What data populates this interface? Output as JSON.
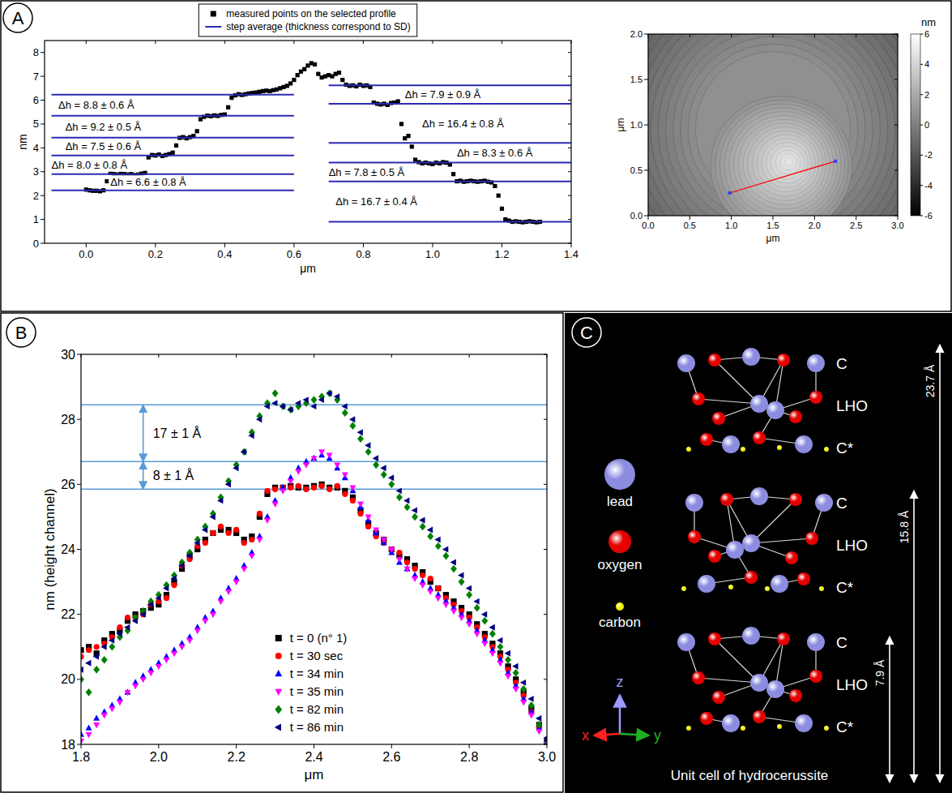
{
  "panel_labels": [
    "A",
    "B",
    "C"
  ],
  "chart_data": [
    {
      "type": "scatter",
      "x_label": "μm",
      "y_label": "nm",
      "xlim": [
        -0.12,
        1.4
      ],
      "xticks": [
        {
          "value": 0,
          "label": "0.0"
        },
        0.2,
        0.4,
        0.6,
        0.8,
        {
          "value": 1,
          "label": "1.0"
        },
        1.2,
        1.4
      ],
      "ylim": [
        0,
        8.5
      ],
      "yticks": [
        0,
        1,
        2,
        3,
        4,
        5,
        6,
        7,
        8
      ],
      "legend": "top",
      "series": [
        {
          "name": "measured points on the selected profile",
          "color": "#000000",
          "marker": "square",
          "x": [
            0,
            0.01,
            0.02,
            0.03,
            0.04,
            0.05,
            0.06,
            0.07,
            0.08,
            0.09,
            0.1,
            0.11,
            0.12,
            0.13,
            0.14,
            0.15,
            0.16,
            0.17,
            0.18,
            0.19,
            0.2,
            0.21,
            0.22,
            0.23,
            0.24,
            0.25,
            0.26,
            0.27,
            0.28,
            0.29,
            0.3,
            0.31,
            0.32,
            0.33,
            0.34,
            0.35,
            0.36,
            0.37,
            0.38,
            0.39,
            0.4,
            0.41,
            0.42,
            0.43,
            0.44,
            0.45,
            0.46,
            0.47,
            0.48,
            0.49,
            0.5,
            0.51,
            0.52,
            0.53,
            0.54,
            0.55,
            0.56,
            0.57,
            0.58,
            0.59,
            0.6,
            0.61,
            0.62,
            0.63,
            0.64,
            0.65,
            0.66,
            0.67,
            0.68,
            0.69,
            0.7,
            0.71,
            0.72,
            0.73,
            0.74,
            0.75,
            0.76,
            0.77,
            0.78,
            0.79,
            0.8,
            0.81,
            0.82,
            0.83,
            0.84,
            0.85,
            0.86,
            0.87,
            0.88,
            0.89,
            0.9,
            0.91,
            0.92,
            0.93,
            0.94,
            0.95,
            0.96,
            0.97,
            0.98,
            0.99,
            1,
            1.01,
            1.02,
            1.03,
            1.04,
            1.05,
            1.06,
            1.07,
            1.08,
            1.09,
            1.1,
            1.11,
            1.12,
            1.13,
            1.14,
            1.15,
            1.16,
            1.17,
            1.18,
            1.19,
            1.2,
            1.21,
            1.22,
            1.23,
            1.24,
            1.25,
            1.26,
            1.27,
            1.28,
            1.29,
            1.3,
            1.31
          ],
          "values": [
            2.25,
            2.22,
            2.2,
            2.2,
            2.18,
            2.22,
            2.6,
            2.95,
            2.9,
            2.88,
            2.92,
            2.9,
            2.88,
            2.9,
            2.86,
            2.88,
            2.92,
            2.95,
            3.6,
            3.7,
            3.68,
            3.72,
            3.66,
            3.7,
            3.74,
            3.8,
            4.1,
            4.42,
            4.45,
            4.4,
            4.45,
            4.5,
            4.7,
            5.2,
            5.3,
            5.35,
            5.33,
            5.36,
            5.34,
            5.38,
            5.4,
            5.7,
            6.1,
            6.2,
            6.25,
            6.22,
            6.25,
            6.28,
            6.3,
            6.32,
            6.35,
            6.38,
            6.4,
            6.38,
            6.42,
            6.45,
            6.5,
            6.55,
            6.6,
            6.7,
            6.85,
            7.05,
            7.2,
            7.3,
            7.45,
            7.55,
            7.5,
            7.1,
            6.95,
            7.0,
            7.05,
            7.0,
            7.1,
            7.15,
            6.85,
            6.65,
            6.6,
            6.62,
            6.58,
            6.65,
            6.6,
            6.62,
            6.55,
            5.9,
            5.85,
            5.82,
            5.85,
            5.8,
            5.88,
            5.9,
            5.95,
            5.0,
            4.4,
            4.5,
            4.05,
            3.5,
            3.4,
            3.35,
            3.38,
            3.35,
            3.32,
            3.38,
            3.35,
            3.4,
            3.38,
            3.3,
            2.9,
            2.6,
            2.62,
            2.58,
            2.6,
            2.62,
            2.6,
            2.58,
            2.6,
            2.62,
            2.58,
            2.55,
            2.4,
            2.0,
            1.45,
            1.0,
            0.95,
            0.9,
            0.92,
            0.9,
            0.88,
            0.9,
            0.92,
            0.9,
            0.88,
            0.9
          ]
        },
        {
          "name": "step average (thickness correspond to SD)",
          "type": "hline",
          "color": "#2b2bb5",
          "values": [
            2.22,
            2.9,
            3.68,
            4.43,
            5.35,
            6.23,
            6.62,
            5.85,
            4.21,
            3.38,
            2.59,
            0.9
          ],
          "x_start": [
            -0.1,
            -0.1,
            -0.1,
            -0.1,
            -0.1,
            -0.1,
            0.7,
            0.7,
            0.7,
            0.7,
            0.7,
            0.7
          ],
          "x_end": [
            0.6,
            0.6,
            0.6,
            0.6,
            0.6,
            0.6,
            1.4,
            1.4,
            1.4,
            1.4,
            1.4,
            1.4
          ]
        }
      ],
      "annotations": [
        {
          "text": "Δh = 8.8 ± 0.6 Å",
          "x": -0.08,
          "y": 5.79
        },
        {
          "text": "Δh = 9.2 ± 0.5 Å",
          "x": -0.06,
          "y": 4.89
        },
        {
          "text": "Δh = 7.5 ± 0.6 Å",
          "x": -0.06,
          "y": 4.05
        },
        {
          "text": "Δh = 8.0 ± 0.8 Å",
          "x": -0.1,
          "y": 3.29
        },
        {
          "text": "Δh = 6.6 ± 0.8 Å",
          "x": 0.07,
          "y": 2.56
        },
        {
          "text": "Δh = 7.9 ± 0.9 Å",
          "x": 0.92,
          "y": 6.23
        },
        {
          "text": "Δh = 16.4 ± 0.8 Å",
          "x": 0.97,
          "y": 5.03
        },
        {
          "text": "Δh = 8.3 ± 0.6 Å",
          "x": 1.07,
          "y": 3.79
        },
        {
          "text": "Δh = 7.8 ± 0.5 Å",
          "x": 0.7,
          "y": 2.98
        },
        {
          "text": "Δh = 16.7 ± 0.4 Å",
          "x": 0.72,
          "y": 1.74
        }
      ]
    },
    {
      "type": "image",
      "x_label": "μm",
      "y_label": "μm",
      "xlim": [
        0,
        3
      ],
      "xticks": [
        {
          "value": 0,
          "label": "0.0"
        },
        0.5,
        {
          "value": 1,
          "label": "1.0"
        },
        1.5,
        {
          "value": 2,
          "label": "2.0"
        },
        2.5,
        {
          "value": 3,
          "label": "3.0"
        }
      ],
      "ylim": [
        0,
        2
      ],
      "yticks": [
        {
          "value": 0,
          "label": "0.0"
        },
        0.5,
        {
          "value": 1,
          "label": "1.0"
        },
        1.5,
        {
          "value": 2,
          "label": "2.0"
        }
      ],
      "colorbar": {
        "label": "nm",
        "range": [
          -6,
          6
        ],
        "ticks": [
          -6,
          -4,
          -2,
          0,
          2,
          4,
          6
        ]
      },
      "profile": {
        "x": [
          0.98,
          2.25
        ],
        "y": [
          0.25,
          0.6
        ],
        "color": "#ff0000"
      }
    },
    {
      "type": "scatter",
      "x_label": "μm",
      "y_label": "nm (height channel)",
      "xlim": [
        1.8,
        3.0
      ],
      "xticks": [
        1.8,
        {
          "value": 2,
          "label": "2.0"
        },
        2.2,
        2.4,
        2.6,
        2.8,
        {
          "value": 3,
          "label": "3.0"
        }
      ],
      "ylim": [
        18,
        30
      ],
      "yticks": [
        18,
        20,
        22,
        24,
        26,
        28,
        30
      ],
      "legend": "bottom",
      "x": [
        1.8,
        1.82,
        1.84,
        1.86,
        1.88,
        1.9,
        1.92,
        1.94,
        1.96,
        1.98,
        2.0,
        2.02,
        2.04,
        2.06,
        2.08,
        2.1,
        2.12,
        2.14,
        2.16,
        2.18,
        2.2,
        2.22,
        2.24,
        2.26,
        2.28,
        2.3,
        2.32,
        2.34,
        2.36,
        2.38,
        2.4,
        2.42,
        2.44,
        2.46,
        2.48,
        2.5,
        2.52,
        2.54,
        2.56,
        2.58,
        2.6,
        2.62,
        2.64,
        2.66,
        2.68,
        2.7,
        2.72,
        2.74,
        2.76,
        2.78,
        2.8,
        2.82,
        2.84,
        2.86,
        2.88,
        2.9,
        2.92,
        2.94,
        2.96,
        2.98,
        3.0
      ],
      "series": [
        {
          "name": "t = 0 (n° 1)",
          "color": "#000000",
          "marker": "square",
          "values": [
            20.9,
            21.0,
            20.8,
            21.2,
            21.4,
            21.5,
            21.8,
            22.0,
            22.1,
            22.2,
            22.3,
            22.6,
            23.0,
            23.4,
            23.8,
            24.0,
            24.3,
            24.5,
            24.6,
            24.6,
            24.5,
            24.3,
            24.4,
            25.0,
            25.7,
            25.9,
            25.9,
            25.95,
            25.9,
            25.9,
            25.95,
            26.0,
            25.9,
            25.9,
            25.8,
            25.6,
            25.2,
            24.8,
            24.5,
            24.3,
            24.0,
            23.8,
            23.7,
            23.5,
            23.3,
            23.0,
            22.8,
            22.6,
            22.4,
            22.2,
            22.0,
            21.7,
            21.4,
            21.1,
            20.8,
            20.4,
            20.0,
            19.6,
            19.1,
            18.6,
            18.1
          ]
        },
        {
          "name": "t = 30 sec",
          "color": "#ff0000",
          "marker": "circle",
          "values": [
            20.7,
            20.9,
            21.0,
            21.1,
            21.3,
            21.6,
            21.9,
            21.9,
            22.0,
            22.3,
            22.4,
            22.5,
            22.9,
            23.5,
            23.7,
            24.1,
            24.2,
            24.5,
            24.7,
            24.5,
            24.6,
            24.2,
            24.3,
            25.1,
            25.8,
            25.85,
            25.9,
            25.9,
            25.95,
            25.85,
            25.9,
            25.95,
            25.85,
            25.95,
            25.7,
            25.5,
            25.1,
            24.7,
            24.4,
            24.2,
            24.0,
            23.9,
            23.6,
            23.4,
            23.2,
            23.1,
            22.8,
            22.5,
            22.3,
            22.1,
            21.9,
            21.6,
            21.3,
            21.0,
            20.7,
            20.3,
            19.9,
            19.5,
            19.0,
            18.5,
            18.0
          ]
        },
        {
          "name": "t = 34 min",
          "color": "#0000ff",
          "marker": "triangle-up",
          "values": [
            18.3,
            18.5,
            18.8,
            19.0,
            19.2,
            19.4,
            19.6,
            19.9,
            20.1,
            20.3,
            20.5,
            20.7,
            20.9,
            21.1,
            21.3,
            21.6,
            21.9,
            22.1,
            22.5,
            22.8,
            23.1,
            23.5,
            23.9,
            24.4,
            25.0,
            25.5,
            25.9,
            26.2,
            26.5,
            26.7,
            26.8,
            26.9,
            26.8,
            26.5,
            26.2,
            25.8,
            25.3,
            24.9,
            24.5,
            24.2,
            23.9,
            23.6,
            23.4,
            23.2,
            23.0,
            22.8,
            22.6,
            22.4,
            22.2,
            22.0,
            21.8,
            21.5,
            21.2,
            20.9,
            20.6,
            20.2,
            19.8,
            19.4,
            19.0,
            18.5,
            18.1
          ]
        },
        {
          "name": "t = 35 min",
          "color": "#ff00ff",
          "marker": "triangle-down",
          "values": [
            18.1,
            18.3,
            18.6,
            18.9,
            19.1,
            19.3,
            19.6,
            19.8,
            20.0,
            20.2,
            20.4,
            20.6,
            20.8,
            21.0,
            21.2,
            21.5,
            21.8,
            22.0,
            22.4,
            22.7,
            23.0,
            23.4,
            23.8,
            24.3,
            24.9,
            25.4,
            25.8,
            26.1,
            26.4,
            26.6,
            26.8,
            27.0,
            26.9,
            26.6,
            26.3,
            25.9,
            25.4,
            25.0,
            24.6,
            24.3,
            24.0,
            23.7,
            23.4,
            23.1,
            22.9,
            22.7,
            22.5,
            22.3,
            22.1,
            21.9,
            21.7,
            21.4,
            21.1,
            20.8,
            20.5,
            20.1,
            19.7,
            19.3,
            18.9,
            18.4,
            18.0
          ]
        },
        {
          "name": "t = 82 min",
          "color": "#008000",
          "marker": "diamond",
          "values": [
            20.0,
            19.6,
            20.3,
            20.6,
            21.0,
            21.3,
            21.5,
            21.9,
            22.1,
            22.4,
            22.6,
            22.9,
            23.2,
            23.6,
            23.9,
            24.3,
            24.7,
            25.1,
            25.6,
            26.1,
            26.6,
            27.0,
            27.6,
            28.1,
            28.5,
            28.8,
            28.4,
            28.3,
            28.4,
            28.5,
            28.6,
            28.7,
            28.8,
            28.6,
            28.2,
            27.8,
            27.4,
            27.0,
            26.6,
            26.3,
            26.0,
            25.6,
            25.3,
            25.0,
            24.7,
            24.4,
            24.1,
            23.8,
            23.4,
            23.0,
            22.6,
            22.2,
            21.8,
            21.4,
            21.0,
            20.6,
            20.2,
            19.7,
            19.2,
            18.6,
            18.0
          ]
        },
        {
          "name": "t = 86 min",
          "color": "#000080",
          "marker": "triangle-left",
          "values": [
            20.3,
            20.5,
            20.7,
            21.0,
            21.2,
            21.4,
            21.6,
            21.8,
            22.0,
            22.3,
            22.5,
            22.8,
            23.1,
            23.5,
            23.8,
            24.2,
            24.6,
            25.0,
            25.5,
            26.0,
            26.5,
            27.0,
            27.5,
            28.0,
            28.4,
            28.5,
            28.4,
            28.3,
            28.5,
            28.6,
            28.4,
            28.6,
            28.8,
            28.7,
            28.4,
            28.0,
            27.6,
            27.2,
            26.8,
            26.5,
            26.2,
            25.8,
            25.5,
            25.2,
            24.9,
            24.6,
            24.3,
            24.0,
            23.6,
            23.2,
            22.8,
            22.4,
            22.0,
            21.6,
            21.2,
            20.8,
            20.4,
            19.9,
            19.4,
            18.8,
            18.2
          ]
        }
      ],
      "reference_lines": [
        28.45,
        26.7,
        25.85
      ],
      "annotations": [
        {
          "text": "17 ± 1 Å",
          "x": 1.96,
          "y_range": [
            26.7,
            28.45
          ]
        },
        {
          "text": "8 ± 1 Å",
          "x": 1.96,
          "y_range": [
            25.85,
            26.7
          ]
        }
      ]
    }
  ],
  "structure": {
    "legend": [
      {
        "label": "lead",
        "color": "#8c8ce0"
      },
      {
        "label": "oxygen",
        "color": "#e60000"
      },
      {
        "label": "carbon",
        "color": "#eeee00"
      }
    ],
    "layers": [
      [
        "C",
        "LHO",
        "C*"
      ],
      [
        "C",
        "LHO",
        "C*"
      ],
      [
        "C",
        "LHO",
        "C*"
      ]
    ],
    "distances": [
      {
        "value": 23.7,
        "label": "23.7 Å"
      },
      {
        "value": 15.8,
        "label": "15.8 Å"
      },
      {
        "value": 7.9,
        "label": "7.9 Å"
      }
    ],
    "axes": [
      {
        "label": "z",
        "color": "#9a9aff"
      },
      {
        "label": "x",
        "color": "#ff2020"
      },
      {
        "label": "y",
        "color": "#20b020"
      }
    ],
    "caption": "Unit cell of hydrocerussite"
  }
}
